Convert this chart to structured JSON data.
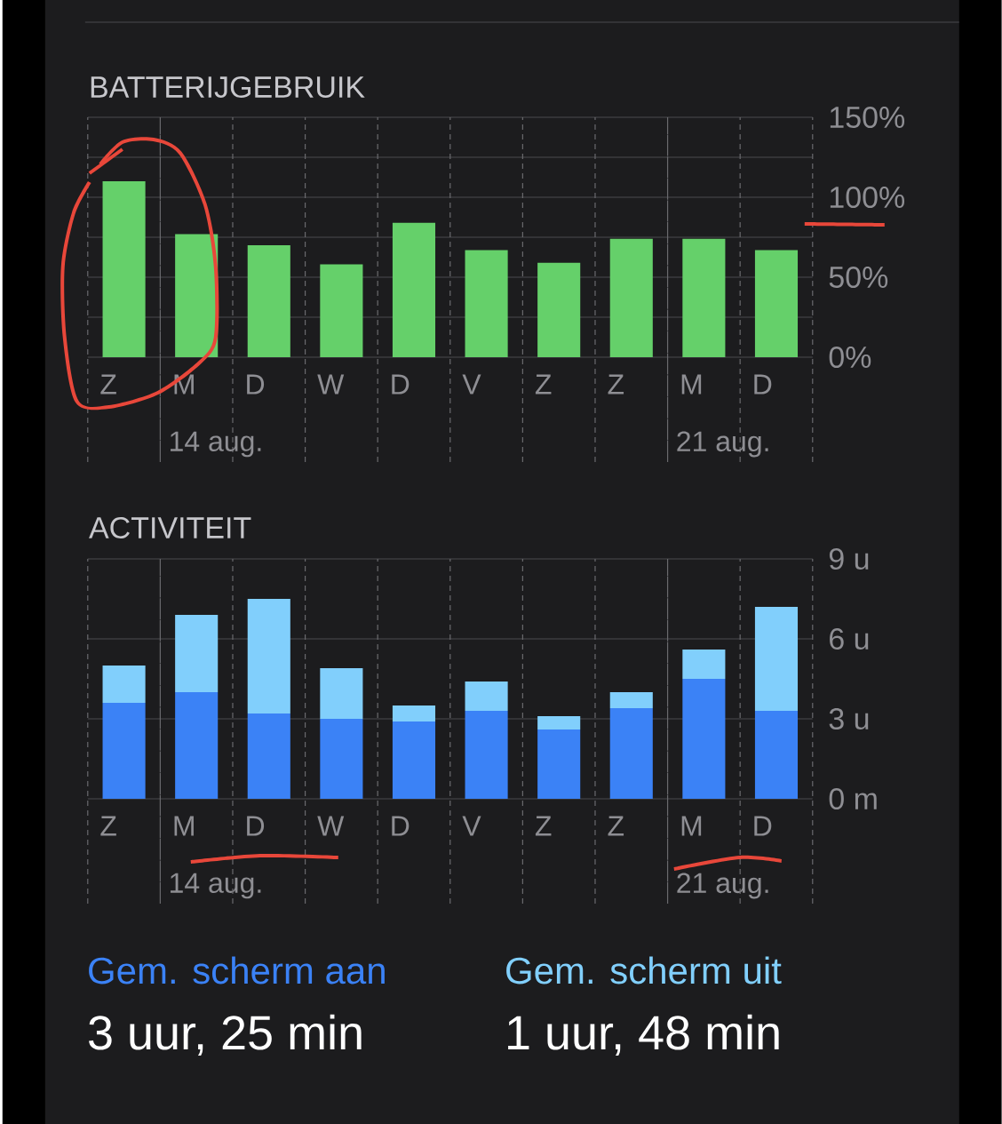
{
  "chart_data": [
    {
      "type": "bar",
      "title": "BATTERIJGEBRUIK",
      "categories": [
        "Z",
        "M",
        "D",
        "W",
        "D",
        "V",
        "Z",
        "Z",
        "M",
        "D"
      ],
      "values": [
        110,
        77,
        70,
        58,
        84,
        67,
        59,
        74,
        74,
        67
      ],
      "color": "#65d06a",
      "ylim": [
        0,
        150
      ],
      "yticks": [
        {
          "value": 0,
          "label": "0%"
        },
        {
          "value": 25,
          "label": null
        },
        {
          "value": 50,
          "label": "50%"
        },
        {
          "value": 75,
          "label": null
        },
        {
          "value": 100,
          "label": "100%"
        },
        {
          "value": 125,
          "label": null
        },
        {
          "value": 150,
          "label": "150%"
        }
      ],
      "grid": true,
      "annotations": [
        "14 aug.",
        "21 aug."
      ]
    },
    {
      "type": "bar",
      "title": "ACTIVITEIT",
      "categories": [
        "Z",
        "M",
        "D",
        "W",
        "D",
        "V",
        "Z",
        "Z",
        "M",
        "D"
      ],
      "stacked": true,
      "series": [
        {
          "name": "Gem. scherm aan",
          "color": "#3b82f6",
          "values": [
            3.6,
            4.0,
            3.2,
            3.0,
            2.9,
            3.3,
            2.6,
            3.4,
            4.5,
            3.3
          ]
        },
        {
          "name": "Gem. scherm uit",
          "color": "#81cffc",
          "values": [
            1.4,
            2.9,
            4.3,
            1.9,
            0.6,
            1.1,
            0.5,
            0.6,
            1.1,
            3.9
          ]
        }
      ],
      "ylim": [
        0,
        9
      ],
      "yticks": [
        {
          "value": 0,
          "label": "0 m"
        },
        {
          "value": 3,
          "label": "3 u"
        },
        {
          "value": 6,
          "label": "6 u"
        },
        {
          "value": 9,
          "label": "9 u"
        }
      ],
      "grid": true,
      "annotations": [
        "14 aug.",
        "21 aug.",
        "3 uur, 25 min",
        "1 uur, 48 min"
      ]
    }
  ]
}
